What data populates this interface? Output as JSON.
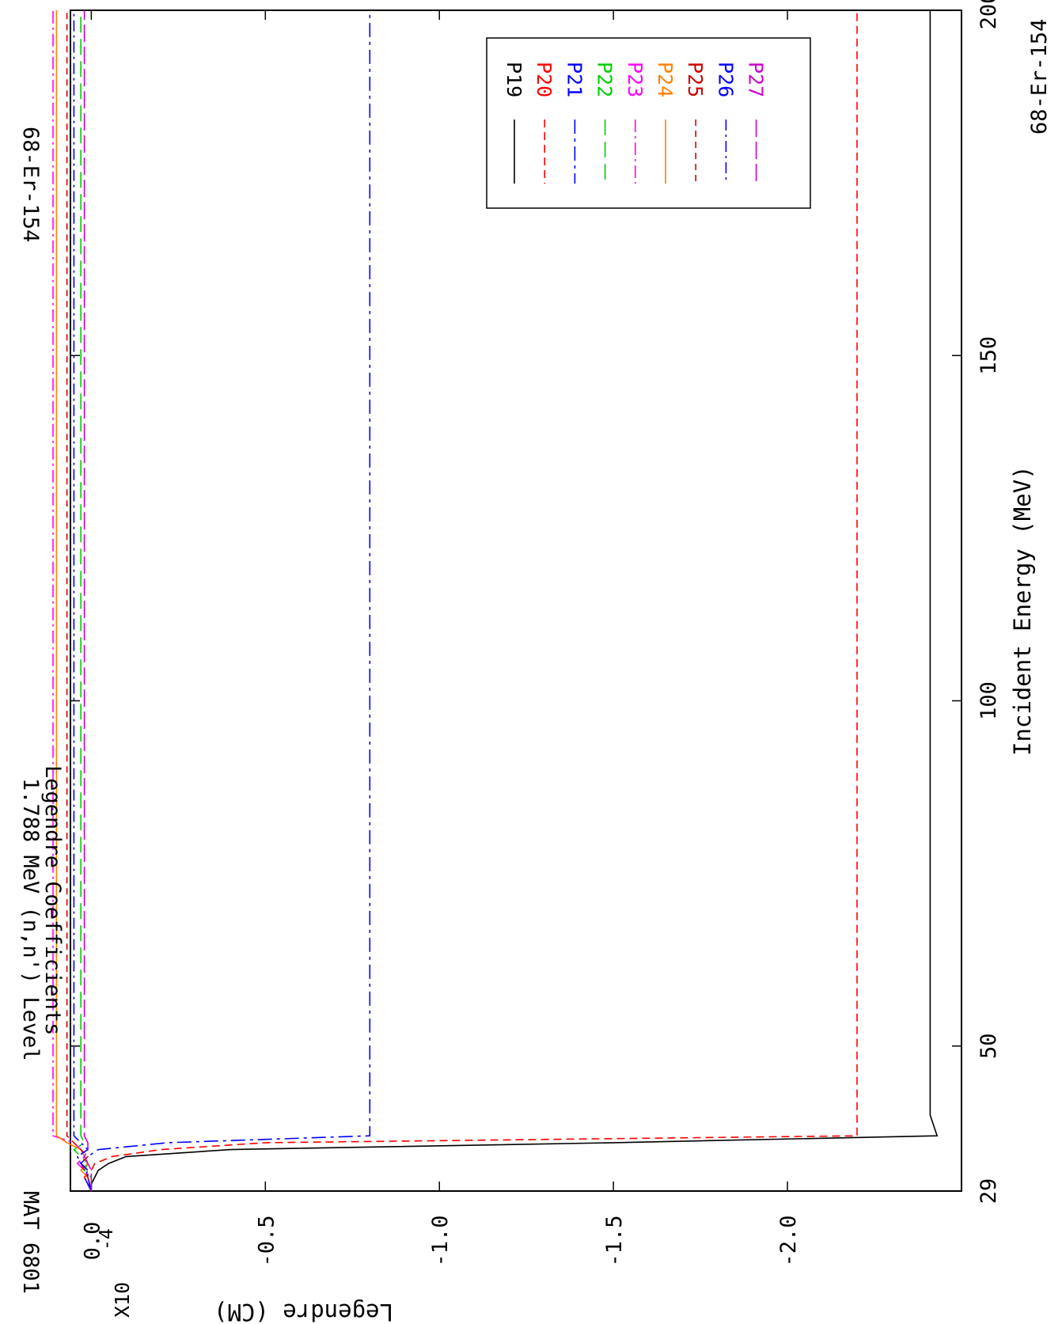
{
  "chart_data": {
    "type": "line",
    "orientation": "rotated-90-clockwise",
    "title": "1.788 MeV (n,n') Level",
    "subtitle": "Legendre Coefficients",
    "mat_label": "MAT 6801",
    "nuclide_label": "68-Er-154",
    "xlabel": "Incident Energy (MeV)",
    "ylabel": "Legendre (CM)",
    "y_scale_label": "X10",
    "y_scale_exponent": "-4",
    "x_axis_start_label": "29",
    "xlim": [
      29,
      200
    ],
    "ylim": [
      -2.5,
      0.06
    ],
    "xticks": [
      29,
      50,
      100,
      150,
      200
    ],
    "xticklabels": [
      "29",
      "50",
      "100",
      "150",
      "200"
    ],
    "yticks": [
      0.0,
      -0.5,
      -1.0,
      -1.5,
      -2.0
    ],
    "yticklabels": [
      "0.0",
      "-0.5",
      "-1.0",
      "-1.5",
      "-2.0"
    ],
    "grid": false,
    "legend_position": "top-right",
    "series": [
      {
        "name": "P19",
        "color": "#000000",
        "dash": "",
        "x": [
          29,
          30,
          31,
          32,
          33,
          34,
          35,
          36,
          37,
          40,
          200
        ],
        "y": [
          0.0,
          0.0,
          -0.01,
          -0.02,
          -0.05,
          -0.1,
          -0.4,
          -1.5,
          -2.43,
          -2.41,
          -2.41
        ]
      },
      {
        "name": "P20",
        "color": "#ff0000",
        "dash": "10,6",
        "x": [
          29,
          30,
          31,
          32,
          33,
          34,
          35,
          36,
          37,
          200
        ],
        "y": [
          0.0,
          0.01,
          0.02,
          0.0,
          -0.01,
          -0.06,
          -0.2,
          -0.5,
          -2.2,
          -2.2
        ]
      },
      {
        "name": "P21",
        "color": "#0000ff",
        "dash": "18,6,4,6",
        "x": [
          29,
          31,
          32,
          33,
          34,
          35,
          36,
          37,
          200
        ],
        "y": [
          0.0,
          0.02,
          0.01,
          0.03,
          0.01,
          -0.02,
          -0.22,
          -0.8,
          -0.8
        ]
      },
      {
        "name": "P22",
        "color": "#00cc00",
        "dash": "20,8",
        "x": [
          29,
          31,
          32,
          33,
          34,
          35,
          36,
          37,
          200
        ],
        "y": [
          0.0,
          0.0,
          0.02,
          0.01,
          0.03,
          0.05,
          0.02,
          0.03,
          0.03
        ]
      },
      {
        "name": "P23",
        "color": "#ff00ff",
        "dash": "16,5,3,5",
        "x": [
          29,
          31,
          32,
          33,
          34,
          35,
          36,
          37,
          200
        ],
        "y": [
          0.0,
          0.01,
          0.02,
          0.04,
          0.02,
          0.03,
          0.05,
          0.11,
          0.11
        ]
      },
      {
        "name": "P24",
        "color": "#ff8000",
        "dash": "",
        "x": [
          29,
          31,
          32,
          33,
          34,
          35,
          36,
          37,
          200
        ],
        "y": [
          0.0,
          0.01,
          0.03,
          0.01,
          0.02,
          0.03,
          0.07,
          0.1,
          0.1
        ]
      },
      {
        "name": "P25",
        "color": "#cc0000",
        "dash": "8,6",
        "x": [
          29,
          31,
          32,
          33,
          34,
          35,
          36,
          37,
          200
        ],
        "y": [
          0.0,
          0.01,
          0.02,
          0.03,
          0.01,
          0.03,
          0.05,
          0.07,
          0.07
        ]
      },
      {
        "name": "P26",
        "color": "#0000ff",
        "dash": "14,5,3,5",
        "x": [
          29,
          31,
          32,
          33,
          34,
          35,
          36,
          37,
          200
        ],
        "y": [
          0.0,
          0.01,
          0.01,
          0.03,
          0.04,
          0.01,
          0.03,
          0.05,
          0.05
        ]
      },
      {
        "name": "P27",
        "color": "#cc00cc",
        "dash": "22,6",
        "x": [
          29,
          31,
          32,
          33,
          34,
          35,
          36,
          37,
          200
        ],
        "y": [
          0.0,
          0.0,
          0.0,
          0.01,
          0.02,
          0.01,
          0.01,
          0.02,
          0.02
        ]
      }
    ]
  }
}
